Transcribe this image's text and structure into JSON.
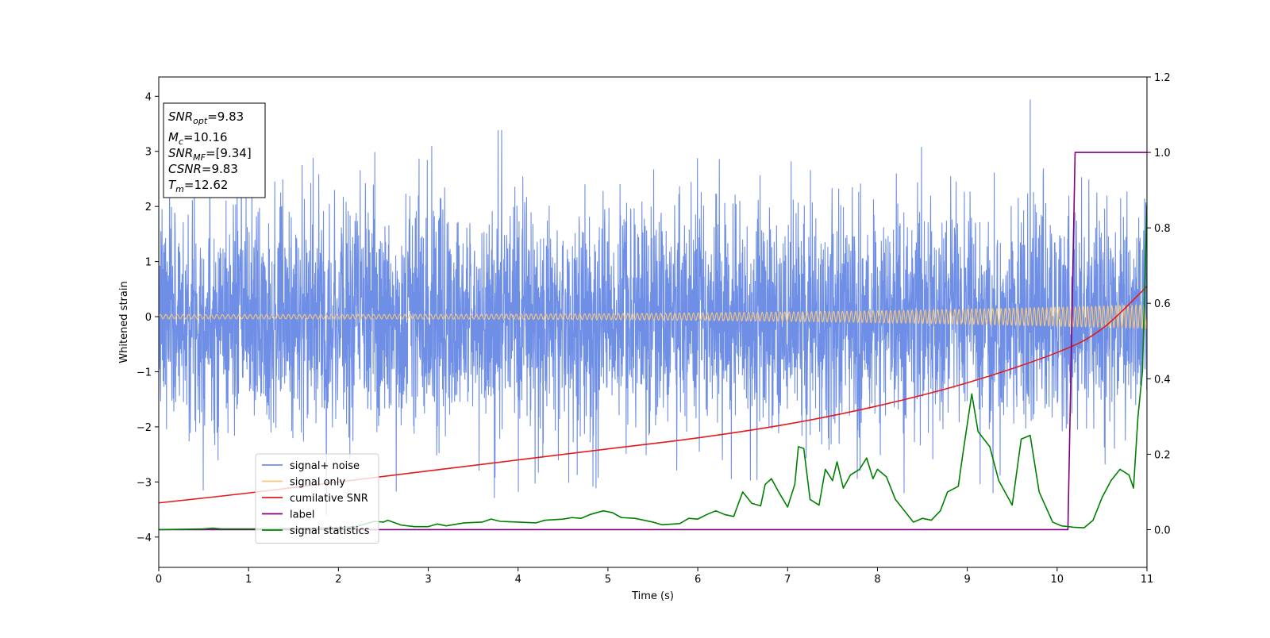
{
  "chart_data": {
    "type": "line",
    "xlabel": "Time (s)",
    "ylabel": "Whitened strain",
    "xlim": [
      0,
      11
    ],
    "ylim_left": [
      -4.55,
      4.35
    ],
    "ylim_right": [
      -0.1,
      1.2
    ],
    "x_ticks": [
      "0",
      "1",
      "2",
      "3",
      "4",
      "5",
      "6",
      "7",
      "8",
      "9",
      "10",
      "11"
    ],
    "y_ticks_left": [
      "4",
      "3",
      "2",
      "1",
      "0",
      "−1",
      "−2",
      "−3",
      "−4"
    ],
    "y_ticks_right": [
      "1.2",
      "1.0",
      "0.8",
      "0.6",
      "0.4",
      "0.2",
      "0.0"
    ],
    "grid": false,
    "legend_position": "lower-left",
    "series": [
      {
        "name": "signal+ noise",
        "axis": "left",
        "color": "#6f8fe6",
        "style": "noise",
        "sigma": 1.0,
        "samples": 4200,
        "seed": 7
      },
      {
        "name": "signal only",
        "axis": "left",
        "color": "#f5c77a",
        "style": "chirp",
        "amplitude_start": 0.04,
        "amplitude_end": 0.22,
        "cycles": 210
      },
      {
        "name": "cumilative SNR",
        "axis": "left",
        "color": "#e6191b",
        "points": [
          [
            0,
            -3.38
          ],
          [
            1,
            -3.2
          ],
          [
            2,
            -3.0
          ],
          [
            3,
            -2.8
          ],
          [
            4,
            -2.6
          ],
          [
            5,
            -2.4
          ],
          [
            6,
            -2.2
          ],
          [
            7,
            -1.95
          ],
          [
            8,
            -1.62
          ],
          [
            9,
            -1.2
          ],
          [
            10,
            -0.65
          ],
          [
            10.5,
            -0.22
          ],
          [
            11,
            0.55
          ]
        ]
      },
      {
        "name": "label",
        "axis": "right",
        "color": "#800080",
        "points": [
          [
            0,
            0
          ],
          [
            10.12,
            0
          ],
          [
            10.2,
            1
          ],
          [
            11,
            1
          ]
        ]
      },
      {
        "name": "signal statistics",
        "axis": "right",
        "color": "#008000",
        "points": [
          [
            0,
            0.0
          ],
          [
            0.5,
            0.002
          ],
          [
            0.6,
            0.004
          ],
          [
            0.7,
            0.002
          ],
          [
            1.0,
            0.002
          ],
          [
            1.5,
            0.003
          ],
          [
            2.0,
            0.005
          ],
          [
            2.2,
            0.008
          ],
          [
            2.4,
            0.022
          ],
          [
            2.5,
            0.02
          ],
          [
            2.55,
            0.025
          ],
          [
            2.7,
            0.012
          ],
          [
            2.85,
            0.008
          ],
          [
            3.0,
            0.008
          ],
          [
            3.1,
            0.015
          ],
          [
            3.2,
            0.01
          ],
          [
            3.4,
            0.018
          ],
          [
            3.6,
            0.02
          ],
          [
            3.7,
            0.028
          ],
          [
            3.8,
            0.022
          ],
          [
            4.0,
            0.02
          ],
          [
            4.2,
            0.018
          ],
          [
            4.3,
            0.025
          ],
          [
            4.5,
            0.028
          ],
          [
            4.6,
            0.032
          ],
          [
            4.7,
            0.03
          ],
          [
            4.8,
            0.04
          ],
          [
            4.95,
            0.05
          ],
          [
            5.05,
            0.045
          ],
          [
            5.15,
            0.032
          ],
          [
            5.3,
            0.03
          ],
          [
            5.5,
            0.02
          ],
          [
            5.6,
            0.013
          ],
          [
            5.8,
            0.016
          ],
          [
            5.9,
            0.03
          ],
          [
            6.0,
            0.028
          ],
          [
            6.1,
            0.04
          ],
          [
            6.2,
            0.05
          ],
          [
            6.3,
            0.04
          ],
          [
            6.4,
            0.035
          ],
          [
            6.5,
            0.1
          ],
          [
            6.6,
            0.07
          ],
          [
            6.7,
            0.063
          ],
          [
            6.75,
            0.12
          ],
          [
            6.82,
            0.135
          ],
          [
            6.9,
            0.1
          ],
          [
            7.0,
            0.06
          ],
          [
            7.08,
            0.12
          ],
          [
            7.12,
            0.22
          ],
          [
            7.18,
            0.215
          ],
          [
            7.25,
            0.08
          ],
          [
            7.35,
            0.065
          ],
          [
            7.42,
            0.16
          ],
          [
            7.5,
            0.13
          ],
          [
            7.55,
            0.18
          ],
          [
            7.62,
            0.11
          ],
          [
            7.7,
            0.145
          ],
          [
            7.8,
            0.16
          ],
          [
            7.88,
            0.19
          ],
          [
            7.95,
            0.135
          ],
          [
            8.0,
            0.16
          ],
          [
            8.1,
            0.14
          ],
          [
            8.2,
            0.08
          ],
          [
            8.3,
            0.05
          ],
          [
            8.4,
            0.02
          ],
          [
            8.5,
            0.03
          ],
          [
            8.6,
            0.025
          ],
          [
            8.7,
            0.05
          ],
          [
            8.78,
            0.1
          ],
          [
            8.9,
            0.115
          ],
          [
            8.95,
            0.2
          ],
          [
            9.05,
            0.36
          ],
          [
            9.12,
            0.26
          ],
          [
            9.25,
            0.22
          ],
          [
            9.35,
            0.13
          ],
          [
            9.5,
            0.065
          ],
          [
            9.6,
            0.24
          ],
          [
            9.7,
            0.25
          ],
          [
            9.8,
            0.1
          ],
          [
            9.95,
            0.02
          ],
          [
            10.05,
            0.01
          ],
          [
            10.2,
            0.006
          ],
          [
            10.3,
            0.005
          ],
          [
            10.4,
            0.025
          ],
          [
            10.5,
            0.085
          ],
          [
            10.6,
            0.13
          ],
          [
            10.7,
            0.16
          ],
          [
            10.8,
            0.145
          ],
          [
            10.85,
            0.11
          ],
          [
            10.9,
            0.3
          ],
          [
            10.95,
            0.42
          ],
          [
            11.0,
            0.86
          ]
        ]
      }
    ],
    "info_box": [
      {
        "main": "SNR",
        "sub": "opt",
        "value": "=9.83"
      },
      {
        "main": "M",
        "sub": "c",
        "value": "=10.16"
      },
      {
        "main": "SNR",
        "sub": "MF",
        "value": "=[9.34]"
      },
      {
        "main": "CSNR",
        "sub": "",
        "value": "=9.83"
      },
      {
        "main": "T",
        "sub": "m",
        "value": "=12.62"
      }
    ]
  }
}
